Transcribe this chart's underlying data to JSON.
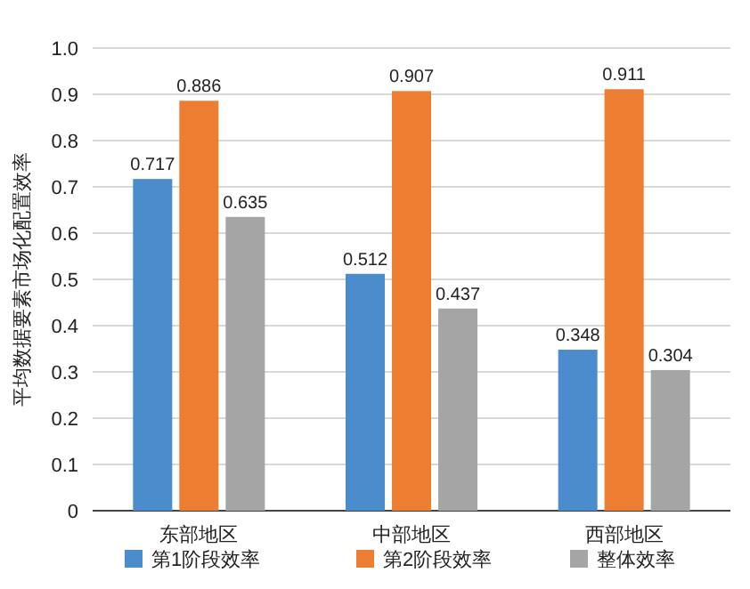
{
  "chart_data": {
    "type": "bar",
    "ylabel": "平均数据要素市场化配置效率",
    "categories": [
      "东部地区",
      "中部地区",
      "西部地区"
    ],
    "series": [
      {
        "name": "第1阶段效率",
        "color": "#4a8ccc",
        "values": [
          0.717,
          0.512,
          0.348
        ]
      },
      {
        "name": "第2阶段效率",
        "color": "#ed7d31",
        "values": [
          0.886,
          0.907,
          0.911
        ]
      },
      {
        "name": "整体效率",
        "color": "#a5a5a5",
        "values": [
          0.635,
          0.437,
          0.304
        ]
      }
    ],
    "ylim": [
      0,
      1
    ],
    "yticks": [
      0,
      0.1,
      0.2,
      0.3,
      0.4,
      0.5,
      0.6,
      0.7,
      0.8,
      0.9,
      {
        "value": 1,
        "label": "1.0"
      }
    ],
    "grid": "y",
    "legend": "bottom",
    "data_labels": true
  }
}
